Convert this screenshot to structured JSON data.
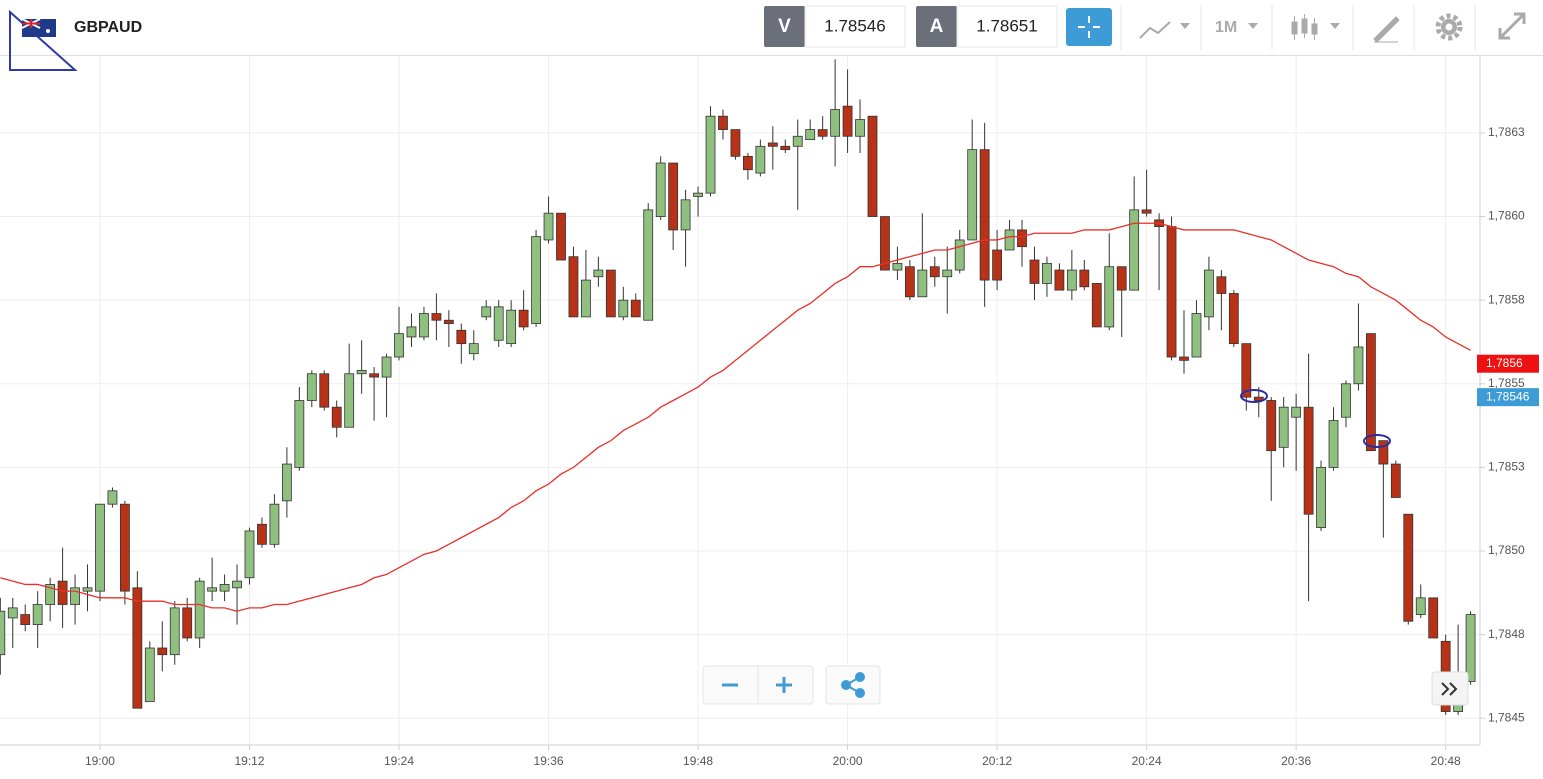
{
  "header": {
    "symbol": "GBPAUD",
    "bid_label": "V",
    "bid": 1.78546,
    "ask_label": "A",
    "ask": 1.78651,
    "timeframe": "1M"
  },
  "chart_data": {
    "type": "candlestick",
    "categories": [
      null,
      null,
      null,
      null,
      null,
      null,
      null,
      null,
      "19:00",
      null,
      null,
      null,
      null,
      null,
      null,
      null,
      null,
      null,
      null,
      null,
      "19:12",
      null,
      null,
      null,
      null,
      null,
      null,
      null,
      null,
      null,
      null,
      null,
      "19:24",
      null,
      null,
      null,
      null,
      null,
      null,
      null,
      null,
      null,
      null,
      null,
      "19:36",
      null,
      null,
      null,
      null,
      null,
      null,
      null,
      null,
      null,
      null,
      null,
      "19:48",
      null,
      null,
      null,
      null,
      null,
      null,
      null,
      null,
      null,
      null,
      null,
      "20:00",
      null,
      null,
      null,
      null,
      null,
      null,
      null,
      null,
      null,
      null,
      null,
      "20:12",
      null,
      null,
      null,
      null,
      null,
      null,
      null,
      null,
      null,
      null,
      null,
      "20:24",
      null,
      null,
      null,
      null,
      null,
      null,
      null,
      null,
      null,
      null,
      null,
      "20:36",
      null,
      null,
      null,
      null,
      null,
      null,
      null,
      null,
      null,
      null,
      null,
      "20:48",
      null,
      null
    ],
    "open": [
      1.78469,
      1.7848,
      1.78481,
      1.78478,
      1.78484,
      1.78491,
      1.78484,
      1.78488,
      1.78488,
      1.78514,
      1.78514,
      1.78489,
      1.78455,
      1.78471,
      1.78469,
      1.78483,
      1.78474,
      1.78488,
      1.78488,
      1.78489,
      1.78492,
      1.78508,
      1.78502,
      1.78515,
      1.78525,
      1.78545,
      1.78553,
      1.78543,
      1.78537,
      1.78553,
      1.78553,
      1.78552,
      1.78558,
      1.78564,
      1.78564,
      1.78571,
      1.78569,
      1.78566,
      1.78559,
      1.7857,
      1.78563,
      1.78562,
      1.78572,
      1.78568,
      1.78593,
      1.78601,
      1.78588,
      1.7857,
      1.78582,
      1.78584,
      1.7857,
      1.78575,
      1.78569,
      1.786,
      1.78616,
      1.78596,
      1.78606,
      1.78607,
      1.7863,
      1.78626,
      1.78618,
      1.78613,
      1.78622,
      1.78621,
      1.78621,
      1.78623,
      1.78626,
      1.78624,
      1.78633,
      1.78624,
      1.7863,
      1.786,
      1.78584,
      1.78585,
      1.78576,
      1.78585,
      1.78582,
      1.78584,
      1.78593,
      1.7862,
      1.7859,
      1.7859,
      1.78596,
      1.78587,
      1.7858,
      1.78584,
      1.78578,
      1.78584,
      1.7858,
      1.78567,
      1.78585,
      1.78578,
      1.78602,
      1.78599,
      1.78597,
      1.78558,
      1.78558,
      1.7857,
      1.78582,
      1.78577,
      1.78562,
      1.78546,
      1.78545,
      1.78531,
      1.7854,
      1.78543,
      1.78507,
      1.78525,
      1.7854,
      1.7855,
      1.78565,
      1.78533,
      1.78526,
      1.78511,
      1.78481,
      1.78486,
      1.78473,
      1.78452,
      1.78461
    ],
    "high": [
      1.78486,
      1.78486,
      1.78484,
      1.78488,
      1.78492,
      1.78501,
      1.78493,
      1.78496,
      1.78514,
      1.78519,
      1.78515,
      1.78494,
      1.78473,
      1.78479,
      1.78485,
      1.78486,
      1.78492,
      1.78498,
      1.78493,
      1.78496,
      1.78507,
      1.7851,
      1.78517,
      1.78531,
      1.78549,
      1.78554,
      1.78554,
      1.78545,
      1.78562,
      1.78563,
      1.78555,
      1.78559,
      1.78573,
      1.78571,
      1.78573,
      1.78577,
      1.78572,
      1.78568,
      1.78566,
      1.78575,
      1.78575,
      1.78575,
      1.78578,
      1.78596,
      1.78606,
      1.78601,
      1.78591,
      1.7859,
      1.78588,
      1.78584,
      1.78579,
      1.78577,
      1.78604,
      1.78618,
      1.78616,
      1.78608,
      1.78609,
      1.78633,
      1.78632,
      1.78626,
      1.78619,
      1.78623,
      1.78627,
      1.78623,
      1.78629,
      1.78629,
      1.7863,
      1.78647,
      1.78644,
      1.78635,
      1.7863,
      1.786,
      1.78591,
      1.78587,
      1.78601,
      1.78588,
      1.78591,
      1.78596,
      1.78629,
      1.78628,
      1.78596,
      1.78599,
      1.78599,
      1.78591,
      1.78588,
      1.78586,
      1.7859,
      1.78587,
      1.7858,
      1.78595,
      1.78585,
      1.78612,
      1.78614,
      1.78601,
      1.786,
      1.78572,
      1.78575,
      1.78588,
      1.78584,
      1.78578,
      1.78562,
      1.78549,
      1.78546,
      1.78546,
      1.78547,
      1.78559,
      1.78527,
      1.78543,
      1.78551,
      1.78574,
      1.78565,
      1.78533,
      1.78527,
      1.78511,
      1.7849,
      1.78486,
      1.78475,
      1.78478,
      1.78482
    ],
    "low": [
      1.78463,
      1.78471,
      1.78476,
      1.78471,
      1.78479,
      1.78477,
      1.78478,
      1.78482,
      1.78485,
      1.78513,
      1.78484,
      1.78453,
      1.78455,
      1.78464,
      1.78466,
      1.78473,
      1.78471,
      1.78485,
      1.78485,
      1.78478,
      1.7849,
      1.78501,
      1.78501,
      1.7851,
      1.78524,
      1.78543,
      1.78542,
      1.78534,
      1.78537,
      1.78547,
      1.78539,
      1.7854,
      1.78557,
      1.78561,
      1.78563,
      1.78563,
      1.78561,
      1.78556,
      1.78557,
      1.78569,
      1.78561,
      1.78561,
      1.78566,
      1.78567,
      1.78592,
      1.78587,
      1.7857,
      1.7857,
      1.78579,
      1.7857,
      1.78569,
      1.7857,
      1.78569,
      1.78599,
      1.7859,
      1.78585,
      1.786,
      1.78606,
      1.78623,
      1.78617,
      1.78611,
      1.78612,
      1.78614,
      1.78619,
      1.78602,
      1.78623,
      1.78623,
      1.78615,
      1.78619,
      1.78619,
      1.786,
      1.78584,
      1.78581,
      1.78575,
      1.78576,
      1.78579,
      1.78571,
      1.78583,
      1.78593,
      1.78573,
      1.78578,
      1.7859,
      1.78585,
      1.78575,
      1.78576,
      1.78578,
      1.78575,
      1.78578,
      1.78567,
      1.78566,
      1.78564,
      1.78578,
      1.786,
      1.78578,
      1.78557,
      1.78553,
      1.78558,
      1.78566,
      1.78566,
      1.78561,
      1.78542,
      1.7854,
      1.78515,
      1.78525,
      1.78524,
      1.78485,
      1.78506,
      1.78524,
      1.78537,
      1.78548,
      1.7853,
      1.78504,
      1.78516,
      1.78478,
      1.7848,
      1.78474,
      1.78451,
      1.78451,
      1.7846
    ],
    "close": [
      1.78482,
      1.78483,
      1.78478,
      1.78484,
      1.7849,
      1.78484,
      1.78489,
      1.78489,
      1.78514,
      1.78518,
      1.78488,
      1.78453,
      1.78471,
      1.78469,
      1.78483,
      1.78474,
      1.78491,
      1.78489,
      1.7849,
      1.78491,
      1.78506,
      1.78502,
      1.78514,
      1.78526,
      1.78545,
      1.78553,
      1.78543,
      1.78537,
      1.78553,
      1.78554,
      1.78552,
      1.78558,
      1.78565,
      1.78567,
      1.78571,
      1.78569,
      1.78568,
      1.78562,
      1.78562,
      1.78573,
      1.78573,
      1.78572,
      1.78567,
      1.78594,
      1.78601,
      1.78587,
      1.7857,
      1.78581,
      1.78584,
      1.7857,
      1.78575,
      1.7857,
      1.78602,
      1.78616,
      1.78596,
      1.78605,
      1.78607,
      1.7863,
      1.78626,
      1.78618,
      1.78614,
      1.78621,
      1.78621,
      1.7862,
      1.78624,
      1.78626,
      1.78624,
      1.78632,
      1.78624,
      1.78629,
      1.786,
      1.78584,
      1.78586,
      1.78576,
      1.78584,
      1.78582,
      1.78584,
      1.78593,
      1.7862,
      1.78581,
      1.78581,
      1.78596,
      1.78591,
      1.7858,
      1.78586,
      1.78578,
      1.78584,
      1.78579,
      1.78567,
      1.78585,
      1.78578,
      1.78602,
      1.78601,
      1.78597,
      1.78558,
      1.78557,
      1.78571,
      1.78584,
      1.78577,
      1.78562,
      1.78546,
      1.78545,
      1.7853,
      1.78543,
      1.78543,
      1.78511,
      1.78525,
      1.78539,
      1.7855,
      1.78561,
      1.7853,
      1.78526,
      1.78516,
      1.78479,
      1.78486,
      1.78474,
      1.78452,
      1.78459,
      1.78481
    ],
    "up_color": "#8fc07f",
    "down_color": "#b83218",
    "ma": {
      "color": "#e8302a",
      "values": [
        1.78492,
        1.78491,
        1.7849,
        1.7849,
        1.78489,
        1.78488,
        1.78488,
        1.78487,
        1.78486,
        1.78486,
        1.78486,
        1.78485,
        1.78485,
        1.78485,
        1.78484,
        1.78484,
        1.78484,
        1.78483,
        1.78483,
        1.78482,
        1.78483,
        1.78483,
        1.78484,
        1.78484,
        1.78485,
        1.78486,
        1.78487,
        1.78488,
        1.78489,
        1.7849,
        1.78492,
        1.78493,
        1.78495,
        1.78497,
        1.78499,
        1.785,
        1.78502,
        1.78504,
        1.78506,
        1.78508,
        1.7851,
        1.78513,
        1.78515,
        1.78518,
        1.7852,
        1.78523,
        1.78525,
        1.78528,
        1.78531,
        1.78533,
        1.78536,
        1.78538,
        1.7854,
        1.78543,
        1.78545,
        1.78547,
        1.78549,
        1.78552,
        1.78554,
        1.78557,
        1.7856,
        1.78563,
        1.78566,
        1.78569,
        1.78572,
        1.78574,
        1.78577,
        1.7858,
        1.78582,
        1.78585,
        1.78585,
        1.78586,
        1.78587,
        1.78588,
        1.78589,
        1.7859,
        1.7859,
        1.78591,
        1.78592,
        1.78593,
        1.78593,
        1.78594,
        1.78594,
        1.78595,
        1.78595,
        1.78595,
        1.78595,
        1.78596,
        1.78596,
        1.78596,
        1.78597,
        1.78598,
        1.78598,
        1.78598,
        1.78597,
        1.78596,
        1.78596,
        1.78596,
        1.78596,
        1.78596,
        1.78595,
        1.78594,
        1.78593,
        1.78591,
        1.78589,
        1.78587,
        1.78586,
        1.78585,
        1.78583,
        1.78582,
        1.78579,
        1.78577,
        1.78575,
        1.78572,
        1.78569,
        1.78567,
        1.78564,
        1.78562,
        1.7856
      ]
    },
    "ylim": [
      1.78442,
      1.78648
    ],
    "yticks": [
      {
        "value": 1.7845,
        "label": "1,7845"
      },
      {
        "value": 1.78475,
        "label": "1,7848"
      },
      {
        "value": 1.785,
        "label": "1,7850"
      },
      {
        "value": 1.78525,
        "label": "1,7853"
      },
      {
        "value": 1.7855,
        "label": "1,7855"
      },
      {
        "value": 1.78575,
        "label": "1,7858"
      },
      {
        "value": 1.786,
        "label": "1,7860"
      },
      {
        "value": 1.78625,
        "label": "1,7863"
      }
    ],
    "grid": true,
    "price_markers": [
      {
        "value": 1.78556,
        "label": "1,7856",
        "color": "#ee1111"
      },
      {
        "value": 1.78546,
        "label": "1,78546",
        "color": "#3d9bd6"
      }
    ]
  }
}
